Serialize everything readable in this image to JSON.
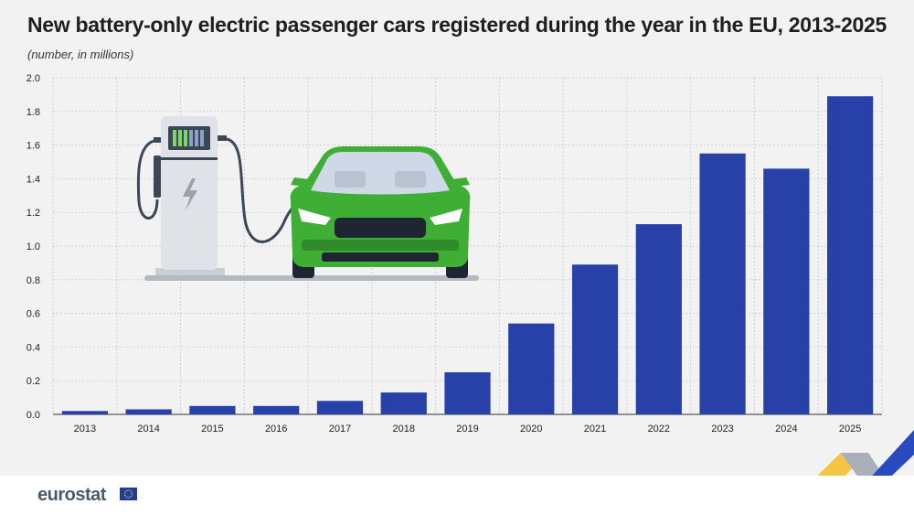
{
  "title": "New battery-only electric passenger cars registered during the year in the EU, 2013-2025",
  "subtitle": "(number, in millions)",
  "brand": "eurostat",
  "colors": {
    "bar": "#2841a8",
    "car": "#3fae35",
    "grid": "#d0d0d0",
    "background": "#f2f2f2"
  },
  "chart_data": {
    "type": "bar",
    "categories": [
      "2013",
      "2014",
      "2015",
      "2016",
      "2017",
      "2018",
      "2019",
      "2020",
      "2021",
      "2022",
      "2023",
      "2024",
      "2025"
    ],
    "values": [
      0.02,
      0.03,
      0.05,
      0.05,
      0.08,
      0.13,
      0.25,
      0.54,
      0.89,
      1.13,
      1.55,
      1.46,
      1.89
    ],
    "yticks": [
      "0.0",
      "0.2",
      "0.4",
      "0.6",
      "0.8",
      "1.0",
      "1.2",
      "1.4",
      "1.6",
      "1.8",
      "2.0"
    ],
    "ylim": [
      0,
      2.0
    ],
    "grid": true,
    "xlabel": "",
    "ylabel": ""
  }
}
